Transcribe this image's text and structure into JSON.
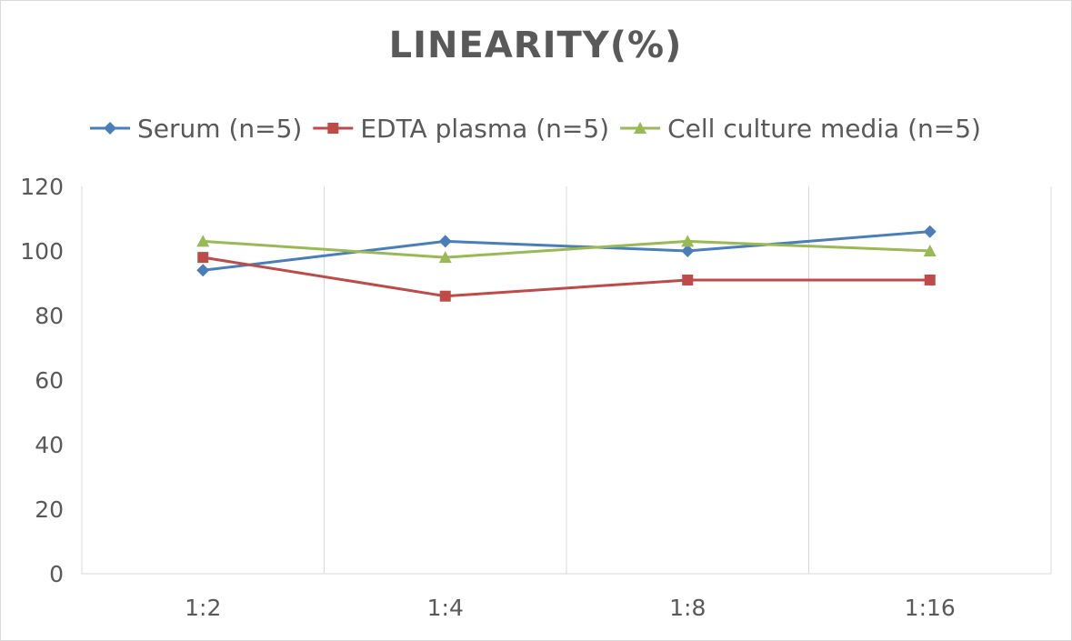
{
  "chart_data": {
    "type": "line",
    "title": "LINEARITY(%)",
    "xlabel": "",
    "ylabel": "",
    "categories": [
      "1:2",
      "1:4",
      "1:8",
      "1:16"
    ],
    "ylim": [
      0,
      120
    ],
    "yticks": [
      0,
      20,
      40,
      60,
      80,
      100,
      120
    ],
    "grid": "vertical",
    "legend_position": "top",
    "series": [
      {
        "name": "Serum (n=5)",
        "values": [
          94,
          103,
          100,
          106
        ],
        "color": "#4a7ebb",
        "marker": "diamond"
      },
      {
        "name": "EDTA plasma (n=5)",
        "values": [
          98,
          86,
          91,
          91
        ],
        "color": "#be4b48",
        "marker": "square"
      },
      {
        "name": "Cell culture media (n=5)",
        "values": [
          103,
          98,
          103,
          100
        ],
        "color": "#98b954",
        "marker": "triangle"
      }
    ]
  }
}
